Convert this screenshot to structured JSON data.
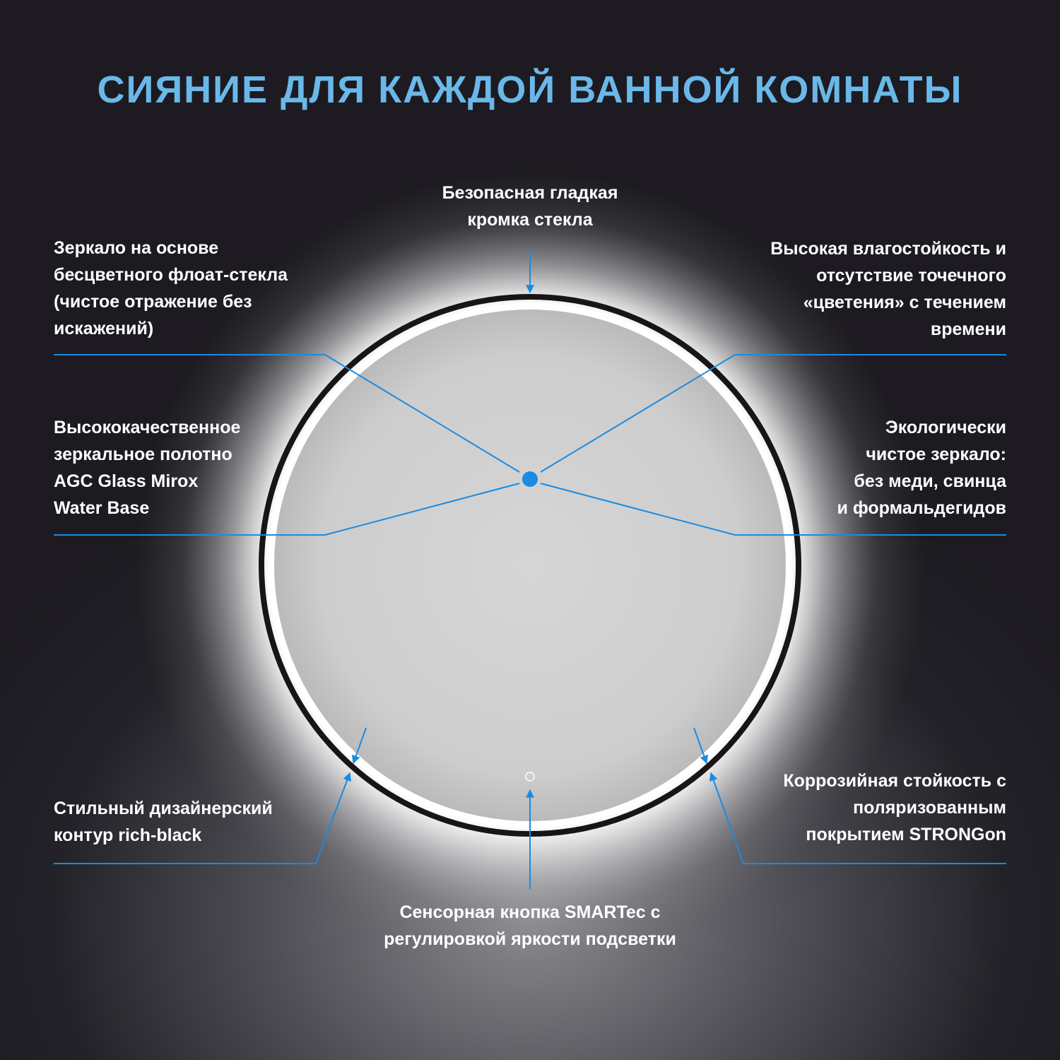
{
  "title": "СИЯНИЕ ДЛЯ КАЖДОЙ ВАННОЙ КОМНАТЫ",
  "accent_color": "#1a8be0",
  "title_color": "#6ab8e9",
  "callouts": {
    "top": "Безопасная гладкая\nкромка стекла",
    "left_top": "Зеркало на основе\nбесцветного флоат-стекла\n(чистое отражение без\nискажений)",
    "right_top": "Высокая влагостойкость и\nотсутствие точечного\n«цветения» с течением\nвремени",
    "left_mid": "Высококачественное\nзеркальное полотно\nAGC Glass Mirox\nWater Base",
    "right_mid": "Экологически\nчистое зеркало:\nбез меди, свинца\nи формальдегидов",
    "left_bottom": "Стильный дизайнерский\nконтур rich-black",
    "right_bottom": "Коррозийная стойкость с\nполяризованным\nпокрытием STRONGon",
    "bottom": "Сенсорная кнопка SMARTec с\nрегулировкой яркости подсветки"
  }
}
